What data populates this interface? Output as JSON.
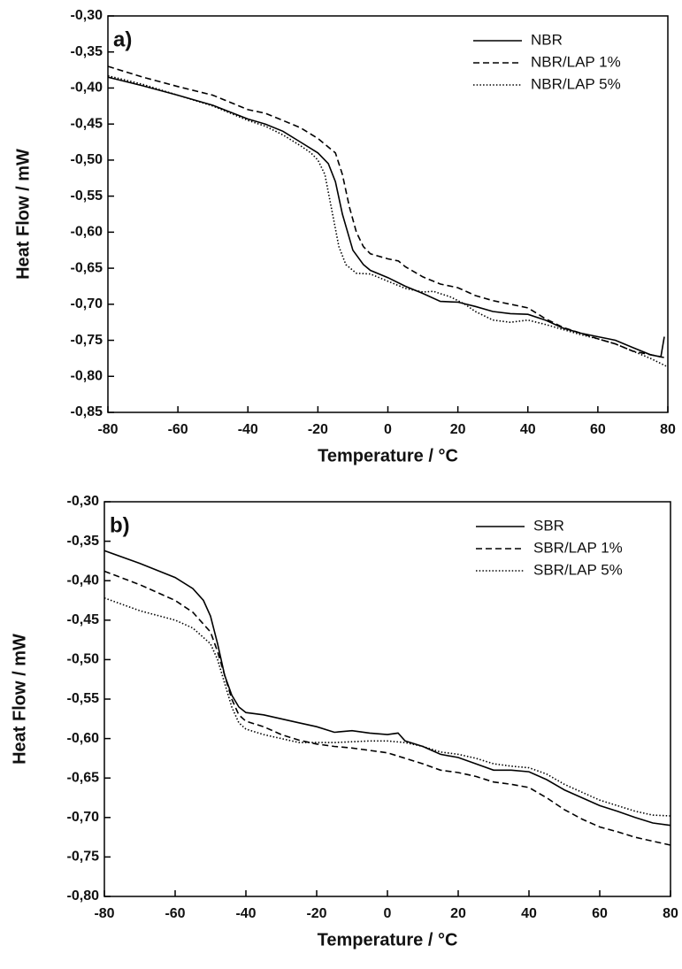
{
  "chart_data": [
    {
      "type": "line",
      "annotation": "a)",
      "xlabel": "Temperature / °C",
      "ylabel": "Heat Flow / mW",
      "xlim": [
        -80,
        80
      ],
      "xticks": [
        -80,
        -60,
        -40,
        -20,
        0,
        20,
        40,
        60,
        80
      ],
      "ylim": [
        -0.85,
        -0.3
      ],
      "yticks": [
        {
          "value": -0.85,
          "label": "-0,85"
        },
        {
          "value": -0.8,
          "label": "-0,80"
        },
        {
          "value": -0.75,
          "label": "-0,75"
        },
        {
          "value": -0.7,
          "label": "-0,70"
        },
        {
          "value": -0.65,
          "label": "-0,65"
        },
        {
          "value": -0.6,
          "label": "-0,60"
        },
        {
          "value": -0.55,
          "label": "-0,55"
        },
        {
          "value": -0.5,
          "label": "-0,50"
        },
        {
          "value": -0.45,
          "label": "-0,45"
        },
        {
          "value": -0.4,
          "label": "-0,40"
        },
        {
          "value": -0.35,
          "label": "-0,35"
        },
        {
          "value": -0.3,
          "label": "-0,30"
        }
      ],
      "legend": "upper right",
      "series": [
        {
          "name": "NBR",
          "color": "#000000",
          "style": "solid",
          "x": [
            -80,
            -70,
            -60,
            -50,
            -40,
            -35,
            -30,
            -25,
            -20,
            -17,
            -15,
            -13,
            -10,
            -7,
            -5,
            0,
            5,
            10,
            15,
            20,
            25,
            30,
            35,
            40,
            45,
            50,
            55,
            60,
            65,
            70,
            75,
            78,
            79
          ],
          "values": [
            -0.385,
            -0.397,
            -0.41,
            -0.424,
            -0.443,
            -0.45,
            -0.46,
            -0.475,
            -0.49,
            -0.505,
            -0.53,
            -0.575,
            -0.625,
            -0.645,
            -0.653,
            -0.663,
            -0.675,
            -0.685,
            -0.696,
            -0.697,
            -0.703,
            -0.71,
            -0.713,
            -0.714,
            -0.722,
            -0.733,
            -0.74,
            -0.745,
            -0.75,
            -0.76,
            -0.77,
            -0.773,
            -0.745
          ]
        },
        {
          "name": "NBR/LAP 1%",
          "color": "#000000",
          "style": "dashed",
          "x": [
            -80,
            -70,
            -60,
            -50,
            -45,
            -40,
            -35,
            -30,
            -25,
            -20,
            -15,
            -13,
            -11,
            -9,
            -7,
            -5,
            0,
            3,
            5,
            10,
            15,
            20,
            25,
            30,
            35,
            40,
            45,
            50,
            55,
            60,
            65,
            70,
            75,
            80
          ],
          "values": [
            -0.37,
            -0.385,
            -0.398,
            -0.41,
            -0.42,
            -0.43,
            -0.435,
            -0.445,
            -0.455,
            -0.47,
            -0.49,
            -0.52,
            -0.565,
            -0.6,
            -0.62,
            -0.63,
            -0.637,
            -0.64,
            -0.648,
            -0.662,
            -0.672,
            -0.677,
            -0.688,
            -0.695,
            -0.7,
            -0.705,
            -0.72,
            -0.732,
            -0.74,
            -0.748,
            -0.755,
            -0.765,
            -0.77,
            -0.775
          ]
        },
        {
          "name": "NBR/LAP 5%",
          "color": "#000000",
          "style": "dotted",
          "x": [
            -80,
            -70,
            -60,
            -50,
            -40,
            -35,
            -30,
            -25,
            -22,
            -20,
            -18,
            -16,
            -14,
            -12,
            -9,
            -5,
            0,
            5,
            10,
            13,
            18,
            22,
            25,
            30,
            35,
            40,
            45,
            50,
            55,
            60,
            65,
            70,
            75,
            80
          ],
          "values": [
            -0.383,
            -0.395,
            -0.41,
            -0.425,
            -0.445,
            -0.453,
            -0.465,
            -0.48,
            -0.49,
            -0.5,
            -0.52,
            -0.57,
            -0.62,
            -0.645,
            -0.657,
            -0.658,
            -0.668,
            -0.678,
            -0.683,
            -0.682,
            -0.69,
            -0.7,
            -0.71,
            -0.722,
            -0.725,
            -0.722,
            -0.728,
            -0.735,
            -0.742,
            -0.748,
            -0.755,
            -0.765,
            -0.775,
            -0.787
          ]
        }
      ]
    },
    {
      "type": "line",
      "annotation": "b)",
      "xlabel": "Temperature / °C",
      "ylabel": "Heat Flow / mW",
      "xlim": [
        -80,
        80
      ],
      "xticks": [
        -80,
        -60,
        -40,
        -20,
        0,
        20,
        40,
        60,
        80
      ],
      "ylim": [
        -0.8,
        -0.3
      ],
      "yticks": [
        {
          "value": -0.8,
          "label": "-0,80"
        },
        {
          "value": -0.75,
          "label": "-0,75"
        },
        {
          "value": -0.7,
          "label": "-0,70"
        },
        {
          "value": -0.65,
          "label": "-0,65"
        },
        {
          "value": -0.6,
          "label": "-0,60"
        },
        {
          "value": -0.55,
          "label": "-0,55"
        },
        {
          "value": -0.5,
          "label": "-0,50"
        },
        {
          "value": -0.45,
          "label": "-0,45"
        },
        {
          "value": -0.4,
          "label": "-0,40"
        },
        {
          "value": -0.35,
          "label": "-0,35"
        },
        {
          "value": -0.3,
          "label": "-0,30"
        }
      ],
      "legend": "upper right",
      "series": [
        {
          "name": "SBR",
          "color": "#000000",
          "style": "solid",
          "x": [
            -80,
            -70,
            -60,
            -55,
            -52,
            -50,
            -48,
            -46,
            -44,
            -42,
            -40,
            -35,
            -30,
            -25,
            -20,
            -15,
            -10,
            -5,
            0,
            3,
            5,
            10,
            15,
            20,
            25,
            30,
            35,
            40,
            45,
            50,
            55,
            60,
            65,
            70,
            75,
            80
          ],
          "values": [
            -0.362,
            -0.378,
            -0.396,
            -0.41,
            -0.425,
            -0.445,
            -0.48,
            -0.52,
            -0.545,
            -0.56,
            -0.567,
            -0.57,
            -0.575,
            -0.58,
            -0.585,
            -0.592,
            -0.59,
            -0.593,
            -0.595,
            -0.593,
            -0.603,
            -0.61,
            -0.62,
            -0.624,
            -0.632,
            -0.64,
            -0.64,
            -0.642,
            -0.652,
            -0.665,
            -0.675,
            -0.685,
            -0.692,
            -0.7,
            -0.707,
            -0.71
          ]
        },
        {
          "name": "SBR/LAP 1%",
          "color": "#000000",
          "style": "dashed",
          "x": [
            -80,
            -70,
            -60,
            -55,
            -50,
            -48,
            -46,
            -44,
            -42,
            -40,
            -35,
            -30,
            -25,
            -20,
            -15,
            -10,
            -5,
            0,
            5,
            10,
            15,
            20,
            25,
            30,
            35,
            40,
            45,
            50,
            55,
            60,
            65,
            70,
            75,
            80
          ],
          "values": [
            -0.388,
            -0.405,
            -0.425,
            -0.44,
            -0.465,
            -0.49,
            -0.52,
            -0.55,
            -0.57,
            -0.578,
            -0.585,
            -0.595,
            -0.602,
            -0.607,
            -0.61,
            -0.612,
            -0.615,
            -0.618,
            -0.625,
            -0.632,
            -0.64,
            -0.643,
            -0.648,
            -0.655,
            -0.658,
            -0.662,
            -0.675,
            -0.69,
            -0.702,
            -0.712,
            -0.718,
            -0.725,
            -0.73,
            -0.735
          ]
        },
        {
          "name": "SBR/LAP 5%",
          "color": "#000000",
          "style": "dotted",
          "x": [
            -80,
            -70,
            -60,
            -55,
            -50,
            -48,
            -46,
            -44,
            -42,
            -40,
            -35,
            -30,
            -25,
            -20,
            -15,
            -10,
            -5,
            0,
            5,
            10,
            15,
            20,
            25,
            30,
            35,
            40,
            45,
            50,
            55,
            60,
            65,
            70,
            75,
            80
          ],
          "values": [
            -0.422,
            -0.438,
            -0.45,
            -0.46,
            -0.48,
            -0.5,
            -0.53,
            -0.56,
            -0.58,
            -0.588,
            -0.595,
            -0.6,
            -0.605,
            -0.605,
            -0.605,
            -0.604,
            -0.603,
            -0.603,
            -0.605,
            -0.61,
            -0.617,
            -0.62,
            -0.625,
            -0.632,
            -0.635,
            -0.637,
            -0.645,
            -0.658,
            -0.668,
            -0.678,
            -0.685,
            -0.692,
            -0.697,
            -0.698
          ]
        }
      ]
    }
  ]
}
